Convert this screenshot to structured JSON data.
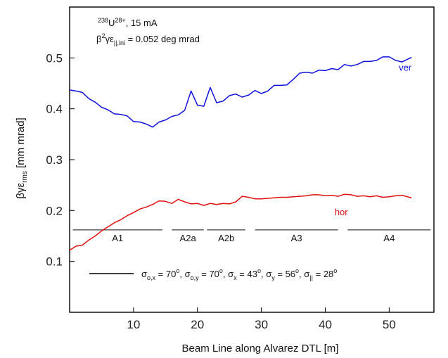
{
  "chart_data": {
    "type": "line",
    "xlabel": "Beam Line along Alvarez DTL [m]",
    "ylabel": {
      "main": "βγε",
      "sub": "rms",
      "unit": " [mm mrad]"
    },
    "xlim": [
      0,
      57
    ],
    "ylim": [
      0.0,
      0.6
    ],
    "x_ticks": [
      10,
      20,
      30,
      40,
      50
    ],
    "y_ticks": [
      0.1,
      0.2,
      0.3,
      0.4,
      0.5
    ],
    "grid": false,
    "annotation_top": {
      "line1": {
        "pre": "238",
        "ion": "U",
        "charge": "28+",
        "rest": ", 15 mA"
      },
      "line2": {
        "beta": "β",
        "sq": "2",
        "gamma": "γε",
        "sub": "||,ini",
        "rest": " = 0.052 deg mrad"
      }
    },
    "annotation_bottom": {
      "parts": [
        {
          "t": "σ",
          "s": "o,x",
          "v": " = 70",
          "deg": "o",
          "sep": ", "
        },
        {
          "t": "σ",
          "s": "o,y",
          "v": " = 70",
          "deg": "o",
          "sep": ",  "
        },
        {
          "t": "σ",
          "s": "x",
          "v": " = 43",
          "deg": "o",
          "sep": ",  "
        },
        {
          "t": "σ",
          "s": "y",
          "v": " = 56",
          "deg": "o",
          "sep": ",  "
        },
        {
          "t": "σ",
          "s": "||",
          "v": " = 28",
          "deg": "o",
          "sep": ""
        }
      ],
      "legend_line_color": "#000000"
    },
    "sections": {
      "y": 0.162,
      "items": [
        {
          "label": "A1",
          "x0": 0.5,
          "x1": 14.5,
          "lx": 7.5
        },
        {
          "label": "A2a",
          "x0": 16.0,
          "x1": 21.0,
          "lx": 18.5
        },
        {
          "label": "A2b",
          "x0": 21.5,
          "x1": 27.5,
          "lx": 24.5
        },
        {
          "label": "A3",
          "x0": 29.0,
          "x1": 42.0,
          "lx": 35.5
        },
        {
          "label": "A4",
          "x0": 43.5,
          "x1": 56.5,
          "lx": 50.0
        }
      ]
    },
    "series": [
      {
        "name": "ver",
        "color": "#1010e0",
        "label_pos": [
          52.5,
          0.482
        ],
        "x": [
          0,
          1,
          2,
          3,
          4,
          5,
          6,
          7,
          8,
          9,
          10,
          11,
          12,
          13,
          14,
          15,
          16,
          17,
          18,
          19,
          20,
          21,
          22,
          23,
          24,
          25,
          26,
          27,
          28,
          29,
          30,
          31,
          32,
          33,
          34,
          35,
          36,
          37,
          38,
          39,
          40,
          41,
          42,
          43,
          44,
          45,
          46,
          47,
          48,
          49,
          50,
          51,
          52,
          53.5
        ],
        "y": [
          0.437,
          0.435,
          0.432,
          0.42,
          0.413,
          0.403,
          0.398,
          0.39,
          0.389,
          0.386,
          0.375,
          0.374,
          0.37,
          0.364,
          0.374,
          0.378,
          0.385,
          0.388,
          0.397,
          0.435,
          0.407,
          0.405,
          0.442,
          0.412,
          0.415,
          0.426,
          0.429,
          0.423,
          0.427,
          0.436,
          0.43,
          0.435,
          0.446,
          0.446,
          0.447,
          0.458,
          0.47,
          0.472,
          0.47,
          0.476,
          0.475,
          0.479,
          0.477,
          0.487,
          0.484,
          0.487,
          0.493,
          0.493,
          0.495,
          0.502,
          0.502,
          0.495,
          0.492,
          0.501
        ]
      },
      {
        "name": "hor",
        "color": "#e01010",
        "label_pos": [
          42.5,
          0.198
        ],
        "x": [
          0,
          1,
          2,
          3,
          4,
          5,
          6,
          7,
          8,
          9,
          10,
          11,
          12,
          13,
          14,
          15,
          16,
          17,
          18,
          19,
          20,
          21,
          22,
          23,
          24,
          25,
          26,
          27,
          28,
          29,
          30,
          31,
          32,
          33,
          34,
          35,
          36,
          37,
          38,
          39,
          40,
          41,
          42,
          43,
          44,
          45,
          46,
          47,
          48,
          49,
          50,
          51,
          52,
          53.5
        ],
        "y": [
          0.122,
          0.13,
          0.132,
          0.142,
          0.15,
          0.16,
          0.168,
          0.176,
          0.182,
          0.19,
          0.196,
          0.203,
          0.207,
          0.212,
          0.219,
          0.218,
          0.214,
          0.222,
          0.217,
          0.213,
          0.214,
          0.21,
          0.214,
          0.212,
          0.214,
          0.213,
          0.217,
          0.228,
          0.226,
          0.223,
          0.223,
          0.224,
          0.225,
          0.226,
          0.226,
          0.227,
          0.228,
          0.229,
          0.231,
          0.231,
          0.229,
          0.23,
          0.228,
          0.232,
          0.231,
          0.228,
          0.229,
          0.227,
          0.229,
          0.226,
          0.227,
          0.229,
          0.23,
          0.225
        ]
      }
    ]
  }
}
